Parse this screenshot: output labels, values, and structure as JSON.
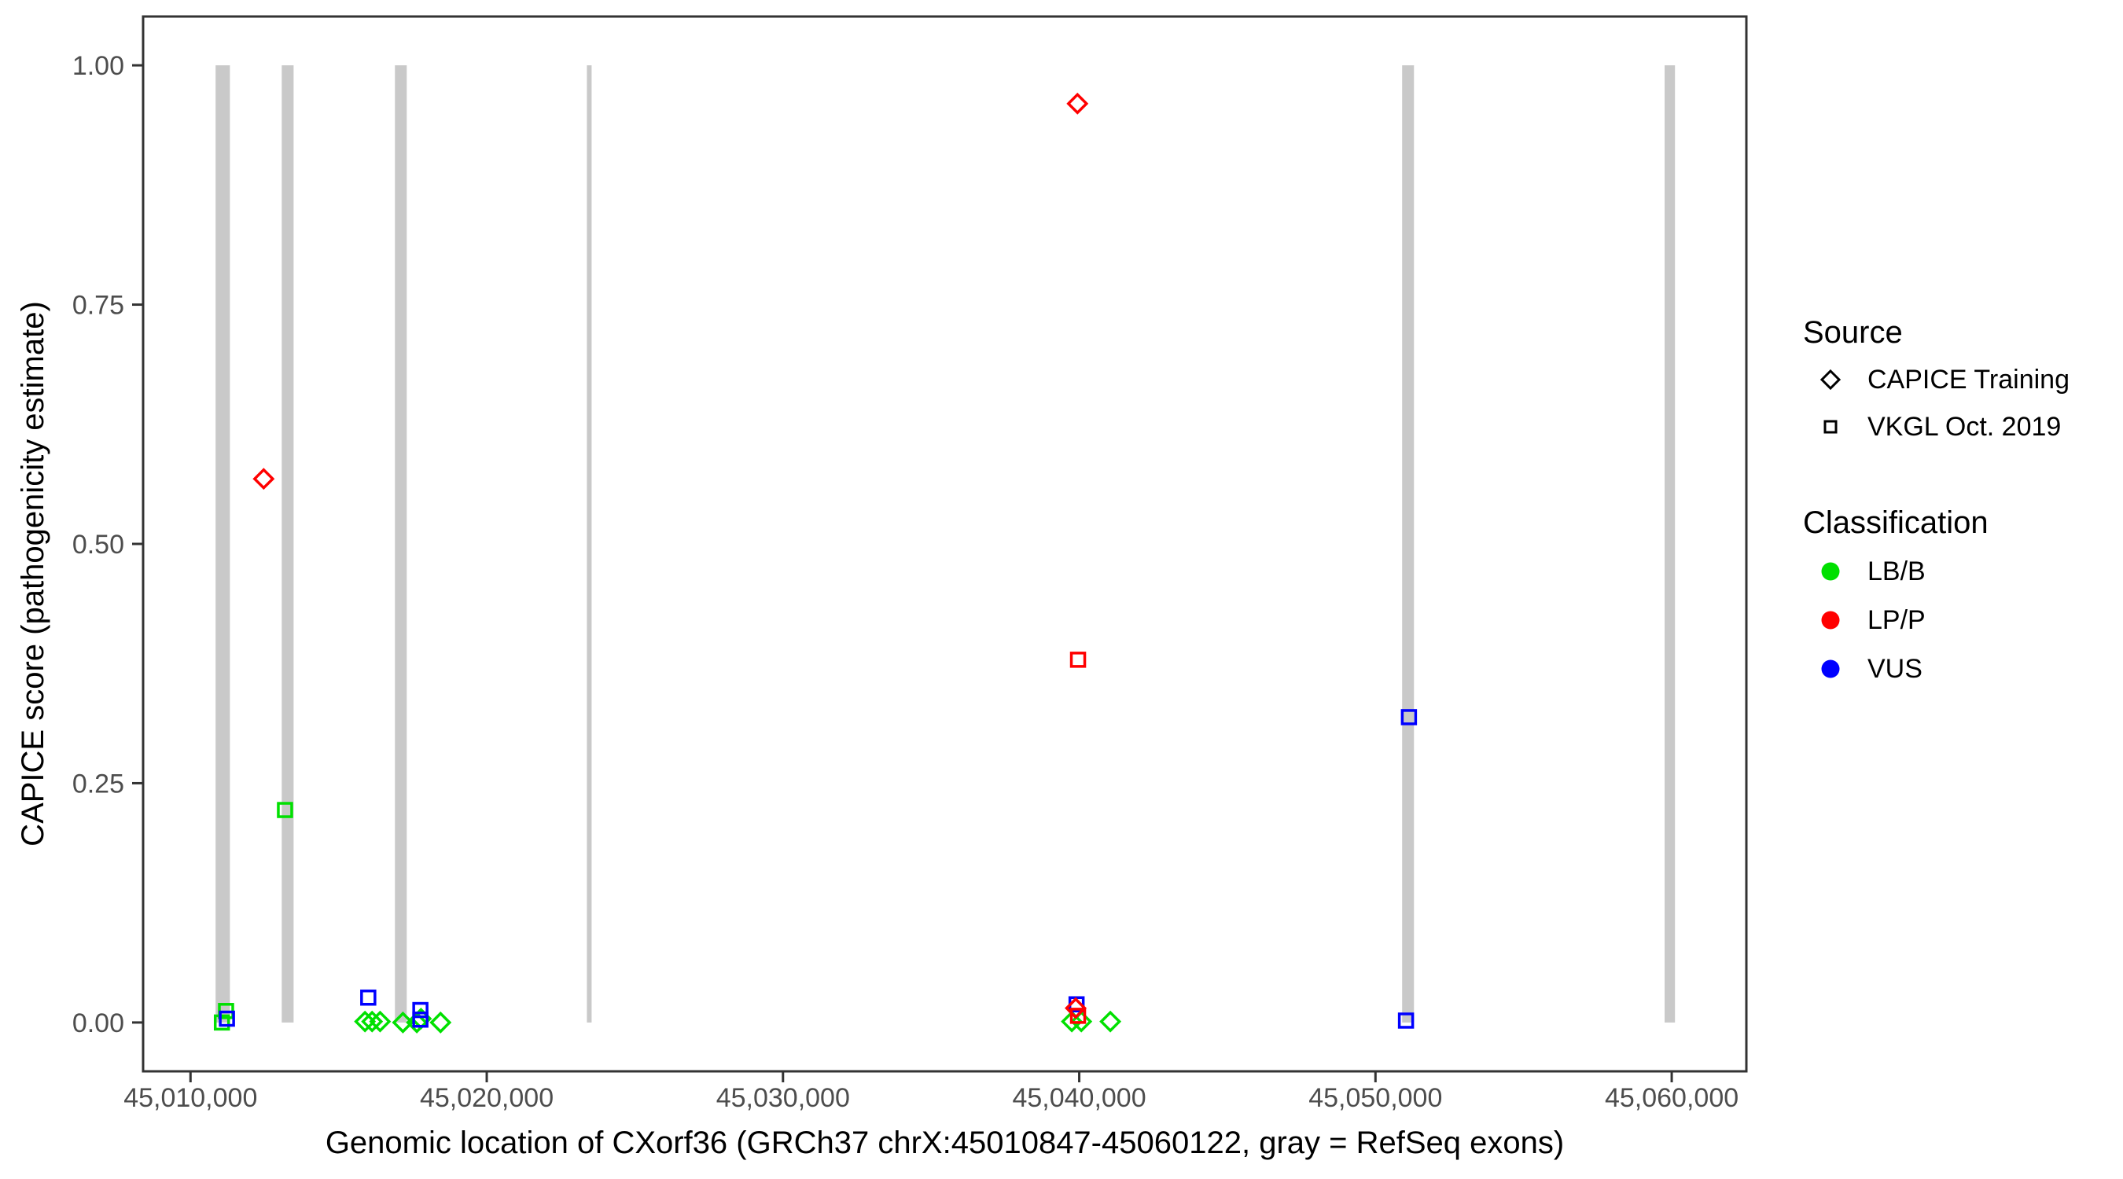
{
  "figure": {
    "x_title": "Genomic location of CXorf36 (GRCh37 chrX:45010847-45060122, gray = RefSeq exons)",
    "y_title": "CAPICE score (pathogenicity estimate)"
  },
  "legend": {
    "source": {
      "title": "Source",
      "items": [
        {
          "label": "CAPICE Training",
          "shape": "diamond"
        },
        {
          "label": "VKGL Oct. 2019",
          "shape": "square"
        }
      ]
    },
    "classification": {
      "title": "Classification",
      "items": [
        {
          "label": "LB/B",
          "color": "#00E000"
        },
        {
          "label": "LP/P",
          "color": "#FF0000"
        },
        {
          "label": "VUS",
          "color": "#0000FF"
        }
      ]
    }
  },
  "chart_data": {
    "type": "scatter",
    "title": "",
    "xlabel": "Genomic location of CXorf36 (GRCh37 chrX:45010847-45060122, gray = RefSeq exons)",
    "ylabel": "CAPICE score (pathogenicity estimate)",
    "x_domain": [
      45008400,
      45062520
    ],
    "y_domain": [
      -0.051,
      1.051
    ],
    "x_ticks": [
      45010000,
      45020000,
      45030000,
      45040000,
      45050000,
      45060000
    ],
    "x_tick_labels": [
      "45,010,000",
      "45,020,000",
      "45,030,000",
      "45,040,000",
      "45,050,000",
      "45,060,000"
    ],
    "y_ticks": [
      0.0,
      0.25,
      0.5,
      0.75,
      1.0
    ],
    "y_tick_labels": [
      "0.00",
      "0.25",
      "0.50",
      "0.75",
      "1.00"
    ],
    "grid": false,
    "legend_position": "right",
    "exon_color": "#C9C9C9",
    "exon_y_span": [
      0.0,
      1.0
    ],
    "exons": [
      [
        45010847,
        45011330
      ],
      [
        45013080,
        45013480
      ],
      [
        45016900,
        45017300
      ],
      [
        45023380,
        45023540
      ],
      [
        45050900,
        45051300
      ],
      [
        45059760,
        45060110
      ]
    ],
    "shape_by_source": {
      "CAPICE Training": "diamond",
      "VKGL Oct. 2019": "square"
    },
    "color_by_classification": {
      "LB/B": "#00E000",
      "LP/P": "#FF0000",
      "VUS": "#0000FF"
    },
    "points": [
      {
        "pos": 45011200,
        "score": 0.012,
        "source": "VKGL Oct. 2019",
        "classification": "LB/B"
      },
      {
        "pos": 45011060,
        "score": 0.0,
        "source": "VKGL Oct. 2019",
        "classification": "LB/B"
      },
      {
        "pos": 45013190,
        "score": 0.222,
        "source": "VKGL Oct. 2019",
        "classification": "LB/B"
      },
      {
        "pos": 45015890,
        "score": 0.001,
        "source": "CAPICE Training",
        "classification": "LB/B"
      },
      {
        "pos": 45016130,
        "score": 0.001,
        "source": "CAPICE Training",
        "classification": "LB/B"
      },
      {
        "pos": 45016400,
        "score": 0.001,
        "source": "CAPICE Training",
        "classification": "LB/B"
      },
      {
        "pos": 45017170,
        "score": 0.0,
        "source": "CAPICE Training",
        "classification": "LB/B"
      },
      {
        "pos": 45017640,
        "score": 0.0,
        "source": "CAPICE Training",
        "classification": "LB/B"
      },
      {
        "pos": 45017780,
        "score": 0.004,
        "source": "CAPICE Training",
        "classification": "LB/B"
      },
      {
        "pos": 45018440,
        "score": 0.0,
        "source": "CAPICE Training",
        "classification": "LB/B"
      },
      {
        "pos": 45039750,
        "score": 0.001,
        "source": "CAPICE Training",
        "classification": "LB/B"
      },
      {
        "pos": 45040070,
        "score": 0.001,
        "source": "CAPICE Training",
        "classification": "LB/B"
      },
      {
        "pos": 45041050,
        "score": 0.001,
        "source": "CAPICE Training",
        "classification": "LB/B"
      },
      {
        "pos": 45011230,
        "score": 0.004,
        "source": "VKGL Oct. 2019",
        "classification": "VUS"
      },
      {
        "pos": 45016000,
        "score": 0.026,
        "source": "VKGL Oct. 2019",
        "classification": "VUS"
      },
      {
        "pos": 45017760,
        "score": 0.013,
        "source": "VKGL Oct. 2019",
        "classification": "VUS"
      },
      {
        "pos": 45017760,
        "score": 0.003,
        "source": "VKGL Oct. 2019",
        "classification": "VUS"
      },
      {
        "pos": 45039910,
        "score": 0.019,
        "source": "VKGL Oct. 2019",
        "classification": "VUS"
      },
      {
        "pos": 45051130,
        "score": 0.319,
        "source": "VKGL Oct. 2019",
        "classification": "VUS"
      },
      {
        "pos": 45051030,
        "score": 0.002,
        "source": "VKGL Oct. 2019",
        "classification": "VUS"
      },
      {
        "pos": 45012470,
        "score": 0.568,
        "source": "CAPICE Training",
        "classification": "LP/P"
      },
      {
        "pos": 45039940,
        "score": 0.96,
        "source": "CAPICE Training",
        "classification": "LP/P"
      },
      {
        "pos": 45039960,
        "score": 0.379,
        "source": "VKGL Oct. 2019",
        "classification": "LP/P"
      },
      {
        "pos": 45039880,
        "score": 0.015,
        "source": "CAPICE Training",
        "classification": "LP/P"
      },
      {
        "pos": 45039960,
        "score": 0.007,
        "source": "VKGL Oct. 2019",
        "classification": "LP/P"
      }
    ]
  }
}
